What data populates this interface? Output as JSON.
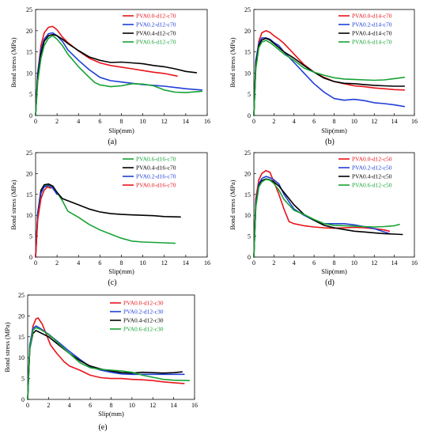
{
  "chart_data": [
    {
      "type": "line",
      "panel": "(a)",
      "xlabel": "Slip(mm)",
      "ylabel": "Bond stress (MPa)",
      "xlim": [
        0,
        16
      ],
      "ylim": [
        0,
        25
      ],
      "xticks": [
        0,
        2,
        4,
        6,
        8,
        10,
        12,
        14,
        16
      ],
      "yticks": [
        0,
        5,
        10,
        15,
        20,
        25
      ],
      "grid": false,
      "legend_position": "top-right",
      "series": [
        {
          "name": "PVA0.0-d12-c70",
          "color": "#e8141b",
          "x": [
            0,
            0.2,
            0.5,
            0.8,
            1.2,
            1.6,
            2.0,
            2.5,
            3.0,
            4.0,
            5.0,
            6.0,
            7.0,
            8.0,
            9.0,
            10.0,
            11.0,
            12.0,
            13.2
          ],
          "y": [
            0,
            10.0,
            16.5,
            19.5,
            20.8,
            21.0,
            20.2,
            18.5,
            17.2,
            15.2,
            13.5,
            12.4,
            11.8,
            11.4,
            11.0,
            10.6,
            10.2,
            9.9,
            9.3
          ]
        },
        {
          "name": "PVA0.2-d12-c70",
          "color": "#1f3fd6",
          "x": [
            0,
            0.2,
            0.5,
            0.8,
            1.2,
            1.6,
            2.0,
            2.5,
            3.0,
            4.0,
            5.0,
            6.0,
            7.0,
            8.0,
            9.0,
            10.0,
            11.0,
            12.0,
            13.0,
            14.0,
            15.5
          ],
          "y": [
            0,
            10.0,
            15.5,
            18.0,
            19.3,
            19.5,
            18.8,
            17.5,
            15.5,
            13.0,
            10.8,
            9.0,
            8.2,
            7.9,
            7.6,
            7.3,
            7.1,
            6.9,
            6.6,
            6.3,
            6.0
          ]
        },
        {
          "name": "PVA0.4-d12-c70",
          "color": "#000000",
          "x": [
            0,
            0.2,
            0.5,
            0.8,
            1.2,
            1.6,
            2.0,
            2.5,
            3.0,
            4.0,
            5.0,
            6.0,
            7.0,
            8.0,
            9.0,
            10.0,
            11.0,
            12.0,
            13.0,
            14.0,
            15.0
          ],
          "y": [
            0,
            9.0,
            14.5,
            17.5,
            18.8,
            19.1,
            18.8,
            18.0,
            17.0,
            15.3,
            13.8,
            13.0,
            12.5,
            12.6,
            12.4,
            12.2,
            11.8,
            11.5,
            11.0,
            10.4,
            10.1
          ]
        },
        {
          "name": "PVA0.6-d12-c70",
          "color": "#17a235",
          "x": [
            0,
            0.2,
            0.5,
            0.8,
            1.2,
            1.6,
            2.0,
            2.5,
            3.0,
            4.0,
            5.0,
            5.5,
            6.0,
            7.0,
            8.0,
            9.0,
            10.0,
            11.0,
            12.0,
            13.0,
            14.0,
            15.5
          ],
          "y": [
            0,
            8.0,
            13.5,
            16.5,
            18.2,
            18.8,
            18.0,
            16.5,
            14.5,
            11.5,
            9.0,
            7.8,
            7.2,
            6.8,
            7.0,
            7.5,
            7.4,
            7.0,
            6.0,
            5.5,
            5.4,
            5.7
          ]
        }
      ]
    },
    {
      "type": "line",
      "panel": "(b)",
      "xlabel": "Slip(mm)",
      "ylabel": "Bond stress (MPa)",
      "xlim": [
        0,
        16
      ],
      "ylim": [
        0,
        25
      ],
      "xticks": [
        0,
        2,
        4,
        6,
        8,
        10,
        12,
        14,
        16
      ],
      "yticks": [
        0,
        5,
        10,
        15,
        20,
        25
      ],
      "grid": false,
      "legend_position": "top-right",
      "series": [
        {
          "name": "PVA0.0-d14-c70",
          "color": "#e8141b",
          "x": [
            0,
            0.2,
            0.5,
            0.8,
            1.2,
            1.6,
            2.0,
            2.5,
            3.0,
            4.0,
            5.0,
            6.0,
            7.0,
            8.0,
            9.0,
            10.0,
            11.0,
            12.0,
            13.0,
            14.0,
            15.0
          ],
          "y": [
            0,
            12.0,
            17.5,
            19.5,
            20.0,
            19.6,
            18.8,
            18.0,
            17.0,
            14.5,
            12.0,
            10.2,
            9.0,
            8.0,
            7.5,
            7.0,
            6.8,
            6.5,
            6.3,
            6.1,
            6.0
          ]
        },
        {
          "name": "PVA0.2-d14-c70",
          "color": "#1f3fd6",
          "x": [
            0,
            0.2,
            0.5,
            0.8,
            1.2,
            1.6,
            2.0,
            2.5,
            3.0,
            4.0,
            5.0,
            6.0,
            7.0,
            8.0,
            9.0,
            10.0,
            11.0,
            12.0,
            13.0,
            14.0,
            15.0
          ],
          "y": [
            0,
            13.0,
            17.0,
            18.3,
            18.3,
            18.0,
            17.2,
            16.5,
            15.0,
            12.5,
            10.0,
            7.5,
            5.5,
            4.0,
            3.6,
            3.8,
            3.5,
            3.0,
            2.8,
            2.5,
            2.1
          ]
        },
        {
          "name": "PVA0.4-d14-c70",
          "color": "#000000",
          "x": [
            0,
            0.2,
            0.5,
            0.8,
            1.2,
            1.6,
            2.0,
            2.5,
            3.0,
            4.0,
            5.0,
            6.0,
            7.0,
            8.0,
            9.0,
            10.0,
            11.0,
            12.0,
            13.0,
            14.0,
            15.0
          ],
          "y": [
            0,
            12.0,
            16.5,
            17.8,
            18.2,
            17.8,
            17.0,
            16.0,
            15.0,
            13.5,
            11.8,
            10.2,
            8.8,
            8.0,
            7.6,
            7.5,
            7.3,
            7.1,
            7.0,
            6.9,
            6.9
          ]
        },
        {
          "name": "PVA0.6-d14-c70",
          "color": "#17a235",
          "x": [
            0,
            0.2,
            0.5,
            0.8,
            1.2,
            1.6,
            2.0,
            2.5,
            3.0,
            4.0,
            5.0,
            6.0,
            7.0,
            8.0,
            9.0,
            10.0,
            11.0,
            12.0,
            13.0,
            14.0,
            15.0
          ],
          "y": [
            0,
            11.0,
            16.0,
            17.3,
            17.7,
            17.2,
            16.5,
            15.5,
            14.5,
            13.0,
            11.2,
            10.2,
            9.5,
            8.9,
            8.6,
            8.5,
            8.4,
            8.3,
            8.4,
            8.7,
            9.0
          ]
        }
      ]
    },
    {
      "type": "line",
      "panel": "(c)",
      "xlabel": "Slip(mm)",
      "ylabel": "Bond stress (MPa)",
      "xlim": [
        0,
        16
      ],
      "ylim": [
        0,
        25
      ],
      "xticks": [
        0,
        2,
        4,
        6,
        8,
        10,
        12,
        14,
        16
      ],
      "yticks": [
        0,
        5,
        10,
        15,
        20,
        25
      ],
      "grid": false,
      "legend_position": "top-right",
      "series": [
        {
          "name": "PVA0.6-d16-c70",
          "color": "#17a235",
          "x": [
            0,
            0.2,
            0.5,
            0.8,
            1.2,
            1.6,
            2.0,
            2.5,
            3.0,
            4.0,
            5.0,
            6.0,
            7.0,
            8.0,
            9.0,
            10.0,
            11.0,
            12.0,
            13.0
          ],
          "y": [
            0,
            10.0,
            15.5,
            17.0,
            17.3,
            16.8,
            15.5,
            13.5,
            11.0,
            9.5,
            7.8,
            6.5,
            5.5,
            4.5,
            3.8,
            3.6,
            3.5,
            3.4,
            3.3
          ]
        },
        {
          "name": "PVA0.4-d16-c70",
          "color": "#000000",
          "x": [
            0,
            0.2,
            0.5,
            0.8,
            1.2,
            1.6,
            2.0,
            2.5,
            3.0,
            4.0,
            5.0,
            6.0,
            7.0,
            8.0,
            9.0,
            10.0,
            11.0,
            12.0,
            13.5
          ],
          "y": [
            0,
            10.5,
            16.0,
            17.3,
            17.5,
            17.0,
            15.5,
            14.0,
            13.5,
            12.5,
            11.5,
            10.8,
            10.4,
            10.2,
            10.1,
            10.0,
            9.9,
            9.7,
            9.6
          ]
        },
        {
          "name": "PVA0.2-d16-c70",
          "color": "#1f3fd6",
          "x": [
            0,
            0.2,
            0.5,
            0.8,
            1.2,
            1.6,
            2.0
          ],
          "y": [
            0,
            10.0,
            15.2,
            16.8,
            17.1,
            16.5,
            15.0
          ]
        },
        {
          "name": "PVA0.0-d16-c70",
          "color": "#e8141b",
          "x": [
            0,
            0.2,
            0.5,
            0.8,
            1.1,
            1.4
          ],
          "y": [
            0,
            9.0,
            14.0,
            16.0,
            16.8,
            16.5
          ]
        }
      ]
    },
    {
      "type": "line",
      "panel": "(d)",
      "xlabel": "Slip(mm)",
      "ylabel": "Bond stress (MPa)",
      "xlim": [
        0,
        16
      ],
      "ylim": [
        0,
        25
      ],
      "xticks": [
        0,
        2,
        4,
        6,
        8,
        10,
        12,
        14,
        16
      ],
      "yticks": [
        0,
        5,
        10,
        15,
        20,
        25
      ],
      "grid": false,
      "legend_position": "top-right",
      "series": [
        {
          "name": "PVA0.0-d12-c50",
          "color": "#e8141b",
          "x": [
            0,
            0.2,
            0.5,
            0.8,
            1.2,
            1.6,
            2.0,
            2.5,
            3.0,
            3.5,
            4.0,
            5.0,
            6.0,
            7.0,
            8.0,
            9.0,
            10.0,
            11.0,
            12.0,
            13.0,
            13.5
          ],
          "y": [
            0,
            14.0,
            18.5,
            20.0,
            20.7,
            20.3,
            18.0,
            15.0,
            11.5,
            8.5,
            8.0,
            7.5,
            7.2,
            7.0,
            6.9,
            7.0,
            7.1,
            7.0,
            6.8,
            6.5,
            6.2
          ]
        },
        {
          "name": "PVA0.2-d12-c50",
          "color": "#1f3fd6",
          "x": [
            0,
            0.2,
            0.5,
            0.8,
            1.2,
            1.6,
            2.0,
            2.5,
            3.0,
            4.0,
            5.0,
            6.0,
            7.0,
            8.0,
            9.0,
            10.0,
            11.0,
            12.0,
            13.0,
            13.5
          ],
          "y": [
            0,
            13.0,
            17.5,
            18.8,
            19.3,
            19.0,
            18.5,
            17.5,
            15.0,
            11.5,
            10.0,
            8.8,
            8.0,
            8.0,
            8.0,
            7.7,
            7.3,
            6.8,
            6.0,
            5.6
          ]
        },
        {
          "name": "PVA0.4-d12-c50",
          "color": "#000000",
          "x": [
            0,
            0.2,
            0.5,
            0.8,
            1.2,
            1.6,
            2.0,
            2.5,
            3.0,
            4.0,
            5.0,
            6.0,
            7.0,
            8.0,
            9.0,
            10.0,
            11.0,
            12.0,
            13.0,
            14.0,
            14.8
          ],
          "y": [
            0,
            12.5,
            17.0,
            18.3,
            18.7,
            18.5,
            18.0,
            17.0,
            15.5,
            12.5,
            10.2,
            8.8,
            7.6,
            7.0,
            6.6,
            6.2,
            6.0,
            5.8,
            5.6,
            5.5,
            5.4
          ]
        },
        {
          "name": "PVA0.6-d12-c50",
          "color": "#17a235",
          "x": [
            0,
            0.2,
            0.5,
            0.8,
            1.2,
            1.6,
            2.0,
            2.5,
            3.0,
            4.0,
            5.0,
            6.0,
            7.0,
            8.0,
            9.0,
            10.0,
            11.0,
            12.0,
            13.0,
            14.0,
            14.5
          ],
          "y": [
            0,
            12.0,
            16.8,
            18.0,
            18.6,
            18.4,
            17.6,
            16.0,
            13.8,
            11.2,
            10.2,
            9.0,
            8.0,
            7.6,
            7.5,
            7.4,
            7.3,
            7.2,
            7.3,
            7.5,
            7.8
          ]
        }
      ]
    },
    {
      "type": "line",
      "panel": "(e)",
      "xlabel": "Slip(mm)",
      "ylabel": "Bond stress (MPa)",
      "xlim": [
        0,
        16
      ],
      "ylim": [
        0,
        25
      ],
      "xticks": [
        0,
        2,
        4,
        6,
        8,
        10,
        12,
        14,
        16
      ],
      "yticks": [
        0,
        5,
        10,
        15,
        20,
        25
      ],
      "grid": false,
      "legend_position": "top-right",
      "series": [
        {
          "name": "PVA0.0-d12-c30",
          "color": "#e8141b",
          "x": [
            0,
            0.2,
            0.5,
            0.8,
            1.0,
            1.4,
            1.8,
            2.2,
            2.8,
            3.5,
            4.0,
            5.0,
            6.0,
            7.0,
            8.0,
            9.0,
            10.0,
            11.0,
            12.0,
            13.0,
            14.0,
            15.0
          ],
          "y": [
            0,
            12.0,
            17.5,
            19.3,
            19.5,
            18.0,
            15.5,
            13.0,
            11.0,
            9.0,
            8.0,
            7.0,
            5.8,
            5.2,
            5.0,
            5.0,
            4.8,
            4.7,
            4.5,
            4.2,
            4.0,
            3.8
          ]
        },
        {
          "name": "PVA0.2-d12-c30",
          "color": "#1f3fd6",
          "x": [
            0,
            0.2,
            0.5,
            0.8,
            1.2,
            1.6,
            2.0,
            2.5,
            3.0,
            4.0,
            5.0,
            6.0,
            7.0,
            8.0,
            9.0,
            10.0,
            11.0,
            12.0,
            13.0,
            14.0,
            15.0
          ],
          "y": [
            0,
            13.0,
            17.0,
            17.6,
            17.0,
            16.3,
            15.6,
            14.6,
            13.6,
            11.5,
            9.6,
            7.8,
            7.0,
            6.5,
            6.1,
            6.0,
            6.0,
            6.0,
            6.0,
            6.0,
            6.0
          ]
        },
        {
          "name": "PVA0.4-d12-c30",
          "color": "#000000",
          "x": [
            0,
            0.2,
            0.5,
            0.8,
            1.2,
            1.6,
            2.0,
            2.5,
            3.0,
            4.0,
            5.0,
            6.0,
            7.0,
            8.0,
            9.0,
            10.0,
            11.0,
            12.0,
            13.0,
            14.0,
            14.8
          ],
          "y": [
            0,
            12.0,
            15.8,
            16.5,
            16.0,
            15.5,
            15.0,
            14.0,
            13.0,
            11.0,
            9.3,
            8.0,
            7.3,
            6.8,
            6.4,
            6.3,
            6.5,
            6.4,
            6.3,
            6.4,
            6.6
          ]
        },
        {
          "name": "PVA0.6-d12-c30",
          "color": "#17a235",
          "x": [
            0,
            0.2,
            0.5,
            0.8,
            1.2,
            1.6,
            2.0,
            2.5,
            3.0,
            4.0,
            5.0,
            6.0,
            7.0,
            8.0,
            9.0,
            10.0,
            11.0,
            12.0,
            13.0,
            14.0,
            15.5
          ],
          "y": [
            0,
            12.0,
            16.5,
            17.2,
            16.8,
            16.2,
            15.5,
            14.5,
            13.3,
            11.0,
            8.8,
            7.6,
            7.2,
            7.0,
            6.8,
            6.5,
            5.8,
            5.3,
            4.8,
            4.6,
            4.5
          ]
        }
      ]
    }
  ]
}
